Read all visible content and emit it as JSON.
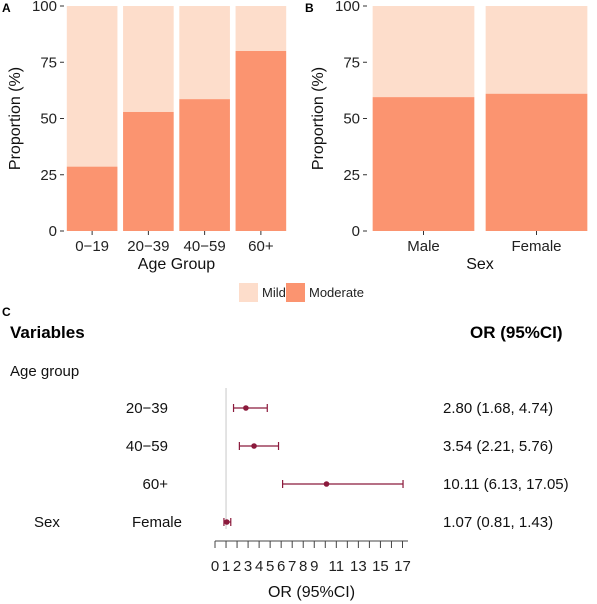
{
  "colors": {
    "mild": "#fdddcb",
    "moderate": "#fb9470",
    "panel_bg": "#ffffff",
    "point": "#8b1a3c",
    "refline": "#c8c8c8"
  },
  "legend": {
    "items": [
      "Mild",
      "Moderate"
    ]
  },
  "chart_data": [
    {
      "panel": "A",
      "type": "bar",
      "stacked": true,
      "xlabel": "Age Group",
      "ylabel": "Proportion (%)",
      "ylim": [
        0,
        100
      ],
      "yticks": [
        "0",
        "25",
        "50",
        "75",
        "100"
      ],
      "categories": [
        "0−19",
        "20−39",
        "40−59",
        "60+"
      ],
      "series": [
        {
          "name": "Moderate",
          "values": [
            28.6,
            52.9,
            58.6,
            80.0
          ]
        },
        {
          "name": "Mild",
          "values": [
            71.4,
            47.1,
            41.4,
            20.0
          ]
        }
      ]
    },
    {
      "panel": "B",
      "type": "bar",
      "stacked": true,
      "xlabel": "Sex",
      "ylabel": "Proportion (%)",
      "ylim": [
        0,
        100
      ],
      "yticks": [
        "0",
        "25",
        "50",
        "75",
        "100"
      ],
      "categories": [
        "Male",
        "Female"
      ],
      "series": [
        {
          "name": "Moderate",
          "values": [
            59.5,
            61.0
          ]
        },
        {
          "name": "Mild",
          "values": [
            40.5,
            39.0
          ]
        }
      ]
    },
    {
      "panel": "C",
      "type": "forest",
      "header_left": "Variables",
      "header_right": "OR (95%CI)",
      "group_label": "Age group",
      "xlabel": "OR (95%CI)",
      "xlim": [
        0,
        17.5
      ],
      "xticks": [
        "0",
        "1",
        "2",
        "3",
        "4",
        "5",
        "6",
        "7",
        "8",
        "9",
        "11",
        "13",
        "15",
        "17"
      ],
      "reference": 1,
      "rows": [
        {
          "group": "",
          "label": "20−39",
          "or": 2.8,
          "lo": 1.68,
          "hi": 4.74,
          "text": "2.80 (1.68, 4.74)"
        },
        {
          "group": "",
          "label": "40−59",
          "or": 3.54,
          "lo": 2.21,
          "hi": 5.76,
          "text": "3.54 (2.21, 5.76)"
        },
        {
          "group": "",
          "label": "60+",
          "or": 10.11,
          "lo": 6.13,
          "hi": 17.05,
          "text": "10.11 (6.13, 17.05)"
        },
        {
          "group": "Sex",
          "label": "Female",
          "or": 1.07,
          "lo": 0.81,
          "hi": 1.43,
          "text": "1.07 (0.81, 1.43)"
        }
      ]
    }
  ]
}
